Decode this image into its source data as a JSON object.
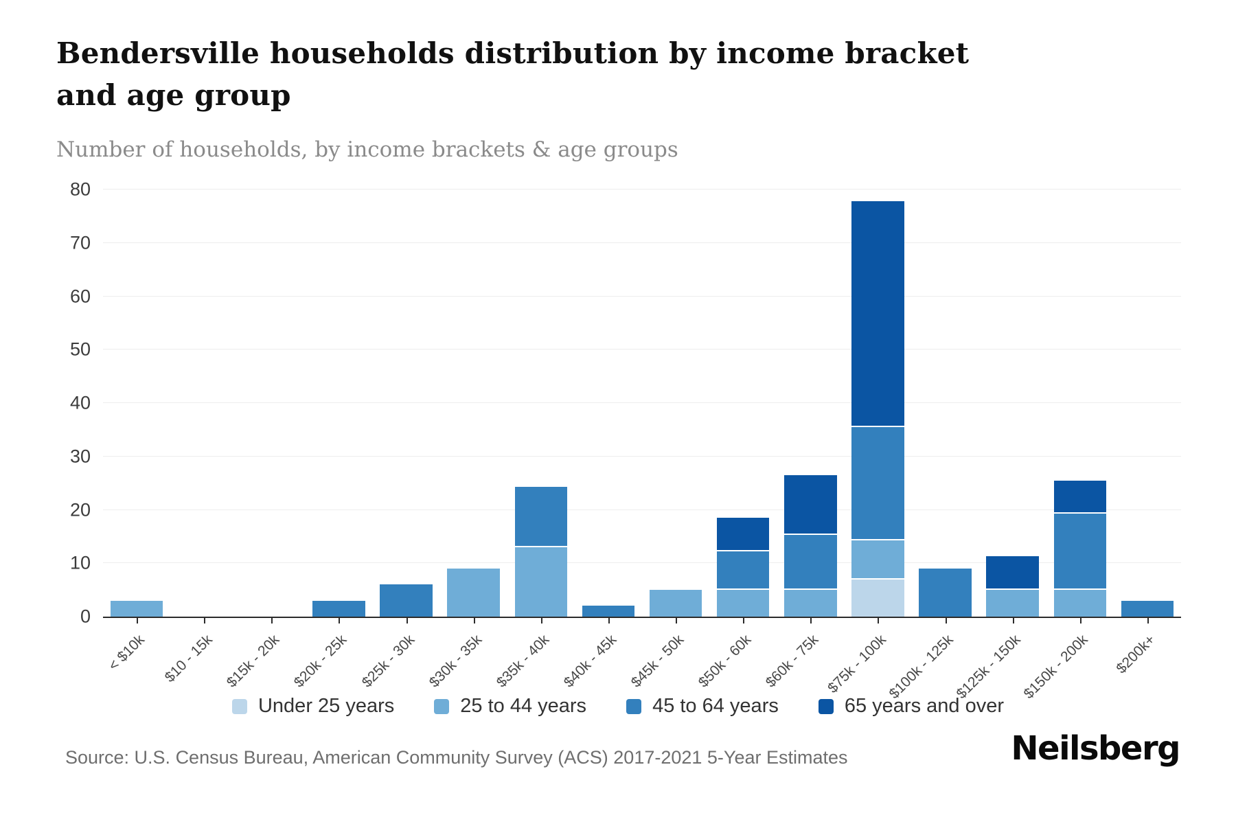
{
  "header": {
    "title": "Bendersville households distribution by income bracket and age group",
    "subtitle": "Number of households, by income brackets & age groups"
  },
  "chart_data": {
    "type": "bar",
    "stacked": true,
    "title": "Bendersville households distribution by income bracket and age group",
    "xlabel": "",
    "ylabel": "Number of households",
    "ylim": [
      0,
      80
    ],
    "yticks": [
      0,
      10,
      20,
      30,
      40,
      50,
      60,
      70,
      80
    ],
    "grid": true,
    "legend_position": "bottom",
    "categories": [
      "< $10k",
      "$10 - 15k",
      "$15k - 20k",
      "$20k - 25k",
      "$25k - 30k",
      "$30k - 35k",
      "$35k - 40k",
      "$40k - 45k",
      "$45k - 50k",
      "$50k - 60k",
      "$60k - 75k",
      "$75k - 100k",
      "$100k - 125k",
      "$125k - 150k",
      "$150k - 200k",
      "$200k+"
    ],
    "series": [
      {
        "name": "Under 25 years",
        "color": "#bcd6ea",
        "values": [
          0,
          0,
          0,
          0,
          0,
          0,
          0,
          0,
          0,
          0,
          0,
          7,
          0,
          0,
          0,
          0
        ]
      },
      {
        "name": "25 to 44 years",
        "color": "#6fadd7",
        "values": [
          3,
          0,
          0,
          0,
          0,
          9,
          13,
          0,
          5,
          5,
          5,
          7,
          0,
          5,
          5,
          0
        ]
      },
      {
        "name": "45 to 64 years",
        "color": "#3380bd",
        "values": [
          0,
          0,
          0,
          3,
          6,
          0,
          11,
          2,
          0,
          7,
          10,
          21,
          9,
          0,
          14,
          3
        ]
      },
      {
        "name": "65 years and over",
        "color": "#0b55a3",
        "values": [
          0,
          0,
          0,
          0,
          0,
          0,
          0,
          0,
          0,
          6,
          11,
          42,
          0,
          6,
          6,
          0
        ]
      }
    ],
    "totals": [
      3,
      0,
      0,
      3,
      6,
      9,
      24,
      2,
      5,
      18,
      26,
      77,
      9,
      11,
      25,
      3
    ]
  },
  "footer": {
    "source": "Source: U.S. Census Bureau, American Community Survey (ACS) 2017-2021 5-Year Estimates",
    "brand": "Neilsberg"
  }
}
